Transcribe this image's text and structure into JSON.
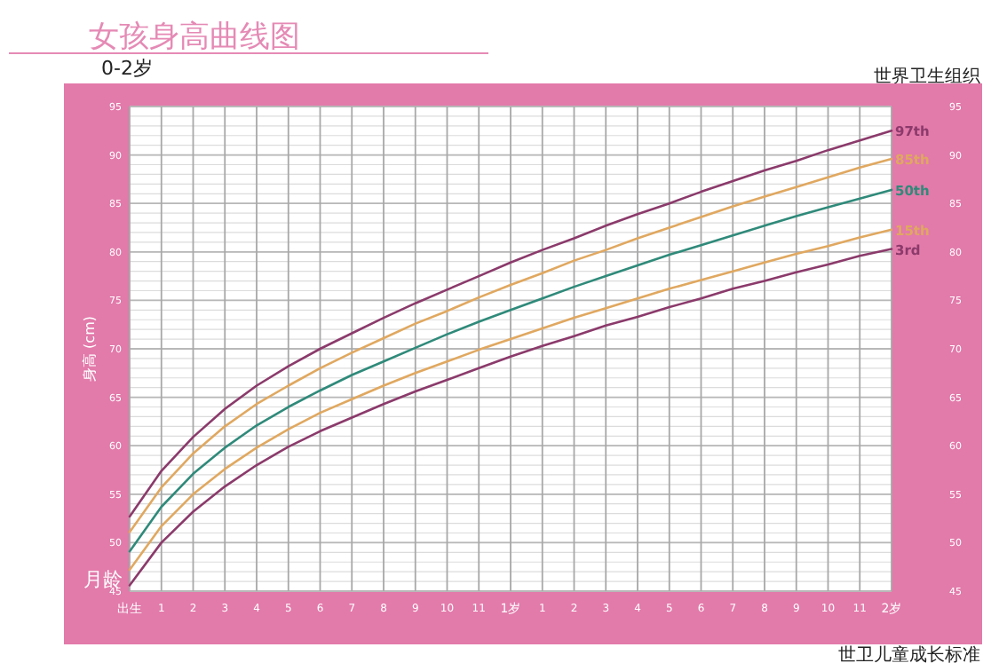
{
  "chart_data": {
    "type": "line",
    "title": "女孩身高曲线图",
    "subtitle": "0-2岁",
    "xlabel": "月龄",
    "ylabel": "身高 (cm)",
    "annotations": [
      "世界卫生组织",
      "世卫儿童成长标准"
    ],
    "categories": [
      "出生",
      "1",
      "2",
      "3",
      "4",
      "5",
      "6",
      "7",
      "8",
      "9",
      "10",
      "11",
      "1岁",
      "1",
      "2",
      "3",
      "4",
      "5",
      "6",
      "7",
      "8",
      "9",
      "10",
      "11",
      "2岁"
    ],
    "series": [
      {
        "name": "97th",
        "color": "#8b3a6b",
        "values": [
          52.7,
          57.4,
          60.9,
          63.8,
          66.2,
          68.2,
          70.0,
          71.6,
          73.2,
          74.7,
          76.1,
          77.5,
          78.9,
          80.2,
          81.4,
          82.7,
          83.9,
          85.0,
          86.2,
          87.3,
          88.4,
          89.4,
          90.5,
          91.5,
          92.5
        ]
      },
      {
        "name": "85th",
        "color": "#e0a860",
        "values": [
          51.1,
          55.7,
          59.2,
          62.0,
          64.3,
          66.2,
          68.0,
          69.6,
          71.1,
          72.6,
          73.9,
          75.3,
          76.6,
          77.8,
          79.1,
          80.2,
          81.4,
          82.5,
          83.6,
          84.7,
          85.7,
          86.7,
          87.7,
          88.7,
          89.6
        ]
      },
      {
        "name": "50th",
        "color": "#2f8a7a",
        "values": [
          49.1,
          53.7,
          57.1,
          59.8,
          62.1,
          64.0,
          65.7,
          67.3,
          68.7,
          70.1,
          71.5,
          72.8,
          74.0,
          75.2,
          76.4,
          77.5,
          78.6,
          79.7,
          80.7,
          81.7,
          82.7,
          83.7,
          84.6,
          85.5,
          86.4
        ]
      },
      {
        "name": "15th",
        "color": "#e0a860",
        "values": [
          47.2,
          51.7,
          55.0,
          57.6,
          59.8,
          61.7,
          63.4,
          64.8,
          66.2,
          67.5,
          68.7,
          69.9,
          71.0,
          72.1,
          73.2,
          74.2,
          75.2,
          76.2,
          77.1,
          78.0,
          78.9,
          79.8,
          80.6,
          81.5,
          82.3
        ]
      },
      {
        "name": "3rd",
        "color": "#8b3a6b",
        "values": [
          45.6,
          50.0,
          53.2,
          55.8,
          58.0,
          59.9,
          61.5,
          62.9,
          64.3,
          65.6,
          66.8,
          68.0,
          69.2,
          70.3,
          71.3,
          72.4,
          73.3,
          74.3,
          75.2,
          76.2,
          77.0,
          77.9,
          78.7,
          79.6,
          80.3
        ]
      }
    ],
    "ylim": [
      45,
      95
    ],
    "yticks": [
      45,
      50,
      55,
      60,
      65,
      70,
      75,
      80,
      85,
      90,
      95
    ],
    "y2lim": [
      45,
      95
    ],
    "y2ticks": [
      45,
      50,
      55,
      60,
      65,
      70,
      75,
      80,
      85,
      90,
      95
    ],
    "grid": true,
    "marker": "none",
    "line_style": "solid"
  }
}
